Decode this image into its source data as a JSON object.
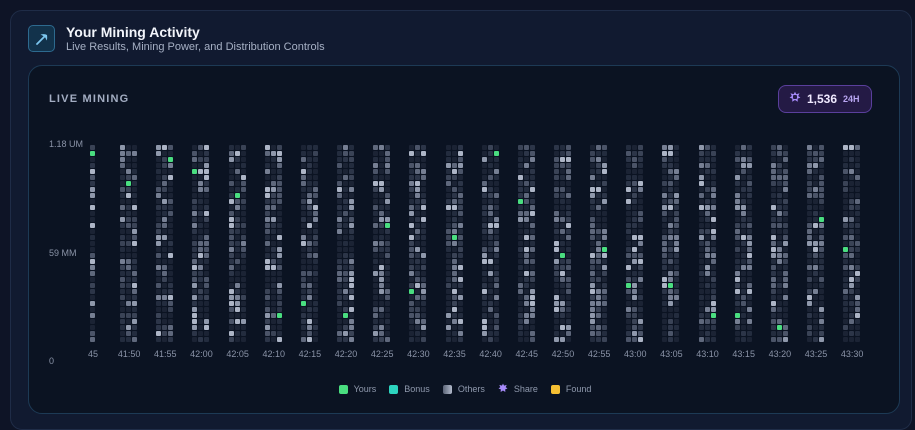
{
  "header": {
    "title": "Your Mining Activity",
    "subtitle": "Live Results, Mining Power, and Distribution Controls",
    "icon": "pickaxe-icon"
  },
  "panel": {
    "label": "LIVE MINING",
    "share_count": "1,536",
    "share_unit": "24H",
    "share_icon": "share-icon"
  },
  "colors": {
    "yours": "#4ade80",
    "bonus": "#2dd4bf",
    "others": "#8b95a8",
    "share": "#a78bfa",
    "found": "#f6c033",
    "accent_pill": "#5a3f9c"
  },
  "chart_data": {
    "type": "heatmap",
    "y_labels": [
      "1.18 UM",
      "59 MM",
      "0"
    ],
    "x_labels": [
      "45",
      "41:50",
      "41:55",
      "42:00",
      "42:05",
      "42:10",
      "42:15",
      "42:20",
      "42:25",
      "42:30",
      "42:35",
      "42:40",
      "42:45",
      "42:50",
      "42:55",
      "43:00",
      "43:05",
      "43:10",
      "43:15",
      "43:20",
      "43:25",
      "43:30"
    ],
    "legend": [
      {
        "label": "Yours",
        "color": "#4ade80",
        "icon": "square"
      },
      {
        "label": "Bonus",
        "color": "#2dd4bf",
        "icon": "square"
      },
      {
        "label": "Others",
        "color": "#8b95a8",
        "icon": "square"
      },
      {
        "label": "Share",
        "color": "#a78bfa",
        "icon": "share-icon"
      },
      {
        "label": "Found",
        "color": "#f6c033",
        "icon": "square"
      }
    ],
    "your_results": [
      {
        "column": "45",
        "level": 0.98
      },
      {
        "column": "41:50",
        "level": 0.82
      },
      {
        "column": "41:55",
        "level": 0.95
      },
      {
        "column": "42:00",
        "level": 0.86
      },
      {
        "column": "42:05",
        "level": 0.76
      },
      {
        "column": "42:10",
        "level": 0.14
      },
      {
        "column": "42:15",
        "level": 0.19
      },
      {
        "column": "42:20",
        "level": 0.11
      },
      {
        "column": "42:25",
        "level": 0.58
      },
      {
        "column": "42:30",
        "level": 0.25
      },
      {
        "column": "42:35",
        "level": 0.53
      },
      {
        "column": "42:40",
        "level": 0.97
      },
      {
        "column": "42:45",
        "level": 0.73
      },
      {
        "column": "42:50",
        "level": 0.44
      },
      {
        "column": "42:55",
        "level": 0.47
      },
      {
        "column": "43:00",
        "level": 0.28
      },
      {
        "column": "43:05",
        "level": 0.28
      },
      {
        "column": "43:10",
        "level": 0.11
      },
      {
        "column": "43:15",
        "level": 0.14
      },
      {
        "column": "43:20",
        "level": 0.07
      },
      {
        "column": "43:25",
        "level": 0.63
      },
      {
        "column": "43:30",
        "level": 0.47
      }
    ]
  }
}
